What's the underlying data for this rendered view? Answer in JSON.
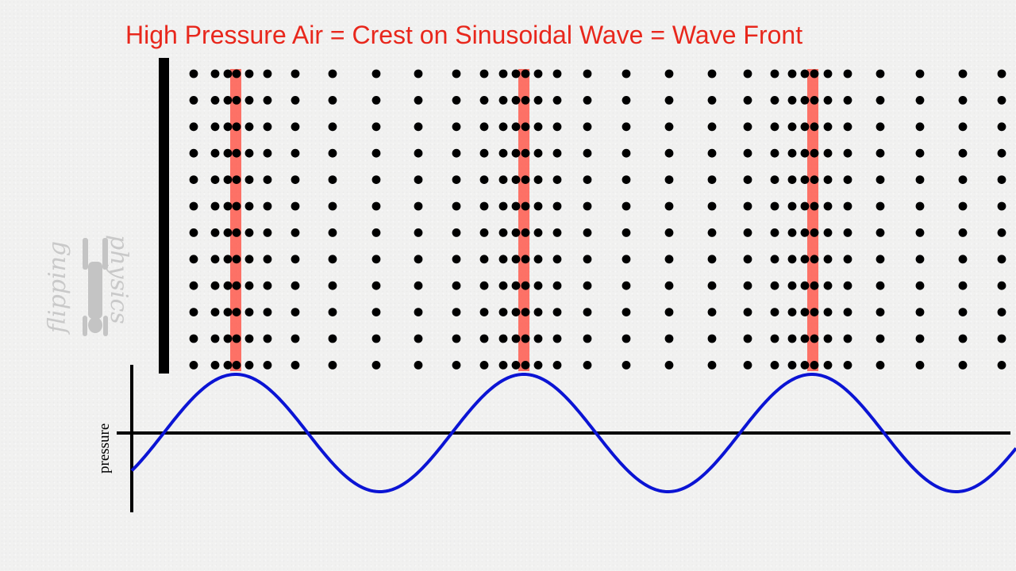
{
  "title": "High Pressure Air = Crest on Sinusoidal Wave = Wave Front",
  "graph": {
    "y_axis_label": "pressure"
  },
  "logo": {
    "text_top": "flipping",
    "text_bottom": "physics"
  },
  "colors": {
    "title": "#e8271c",
    "dots": "#000000",
    "wave_front_highlight": "#ff5a4e",
    "wave": "#0b14d4",
    "axes": "#000000",
    "source_bar": "#000000"
  },
  "diagram": {
    "wave_fronts_count": 3,
    "dot_rows_count": 12
  }
}
